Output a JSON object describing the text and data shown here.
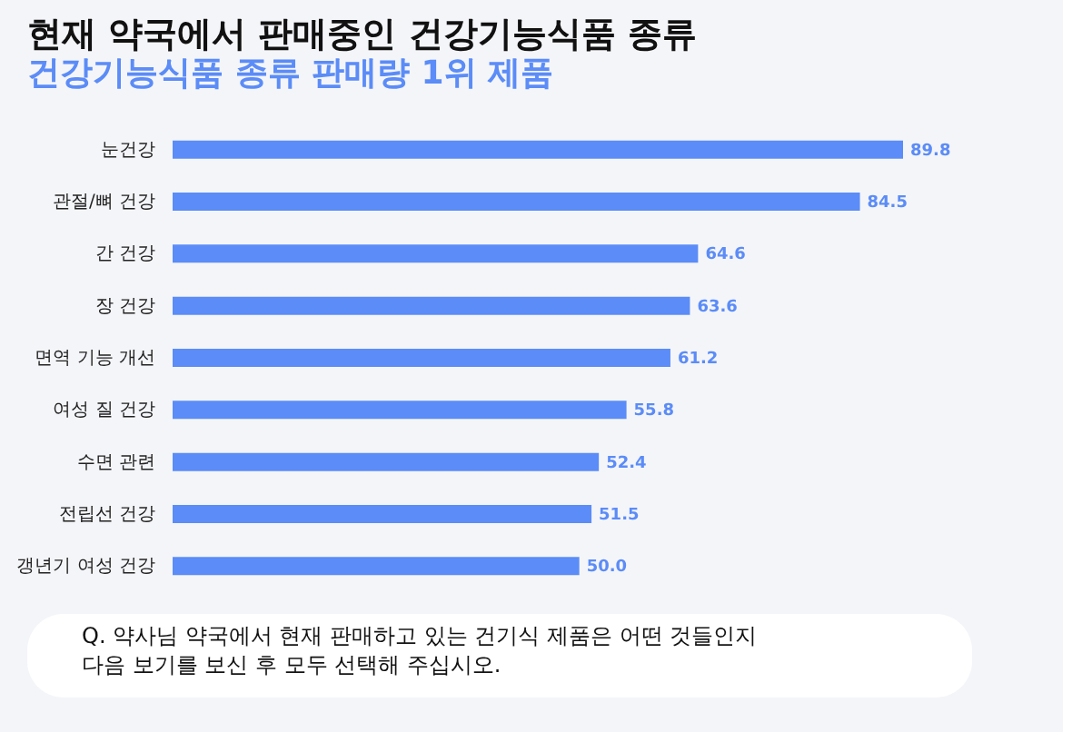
{
  "chart_data": {
    "type": "bar",
    "orientation": "horizontal",
    "title": "현재 약국에서 판매중인 건강기능식품 종류",
    "subtitle": "건강기능식품 종류 판매량 1위 제품",
    "categories": [
      "눈건강",
      "관절/뼈 건강",
      "간 건강",
      "장 건강",
      "면역 기능 개선",
      "여성 질 건강",
      "수면 관련",
      "전립선 건강",
      "갱년기 여성 건강"
    ],
    "values": [
      89.8,
      84.5,
      64.6,
      63.6,
      61.2,
      55.8,
      52.4,
      51.5,
      50.0
    ],
    "value_labels": [
      "89.8",
      "84.5",
      "64.6",
      "63.6",
      "61.2",
      "55.8",
      "52.4",
      "51.5",
      "50.0"
    ],
    "color": "#5b8cf7",
    "tick_labels": "y",
    "annotations": [
      "Q. 약사님 약국에서 현재 판매하고 있는 건기식 제품은 어떤 것들인지\n다음 보기를 보신 후 모두 선택해 주십시오."
    ]
  }
}
